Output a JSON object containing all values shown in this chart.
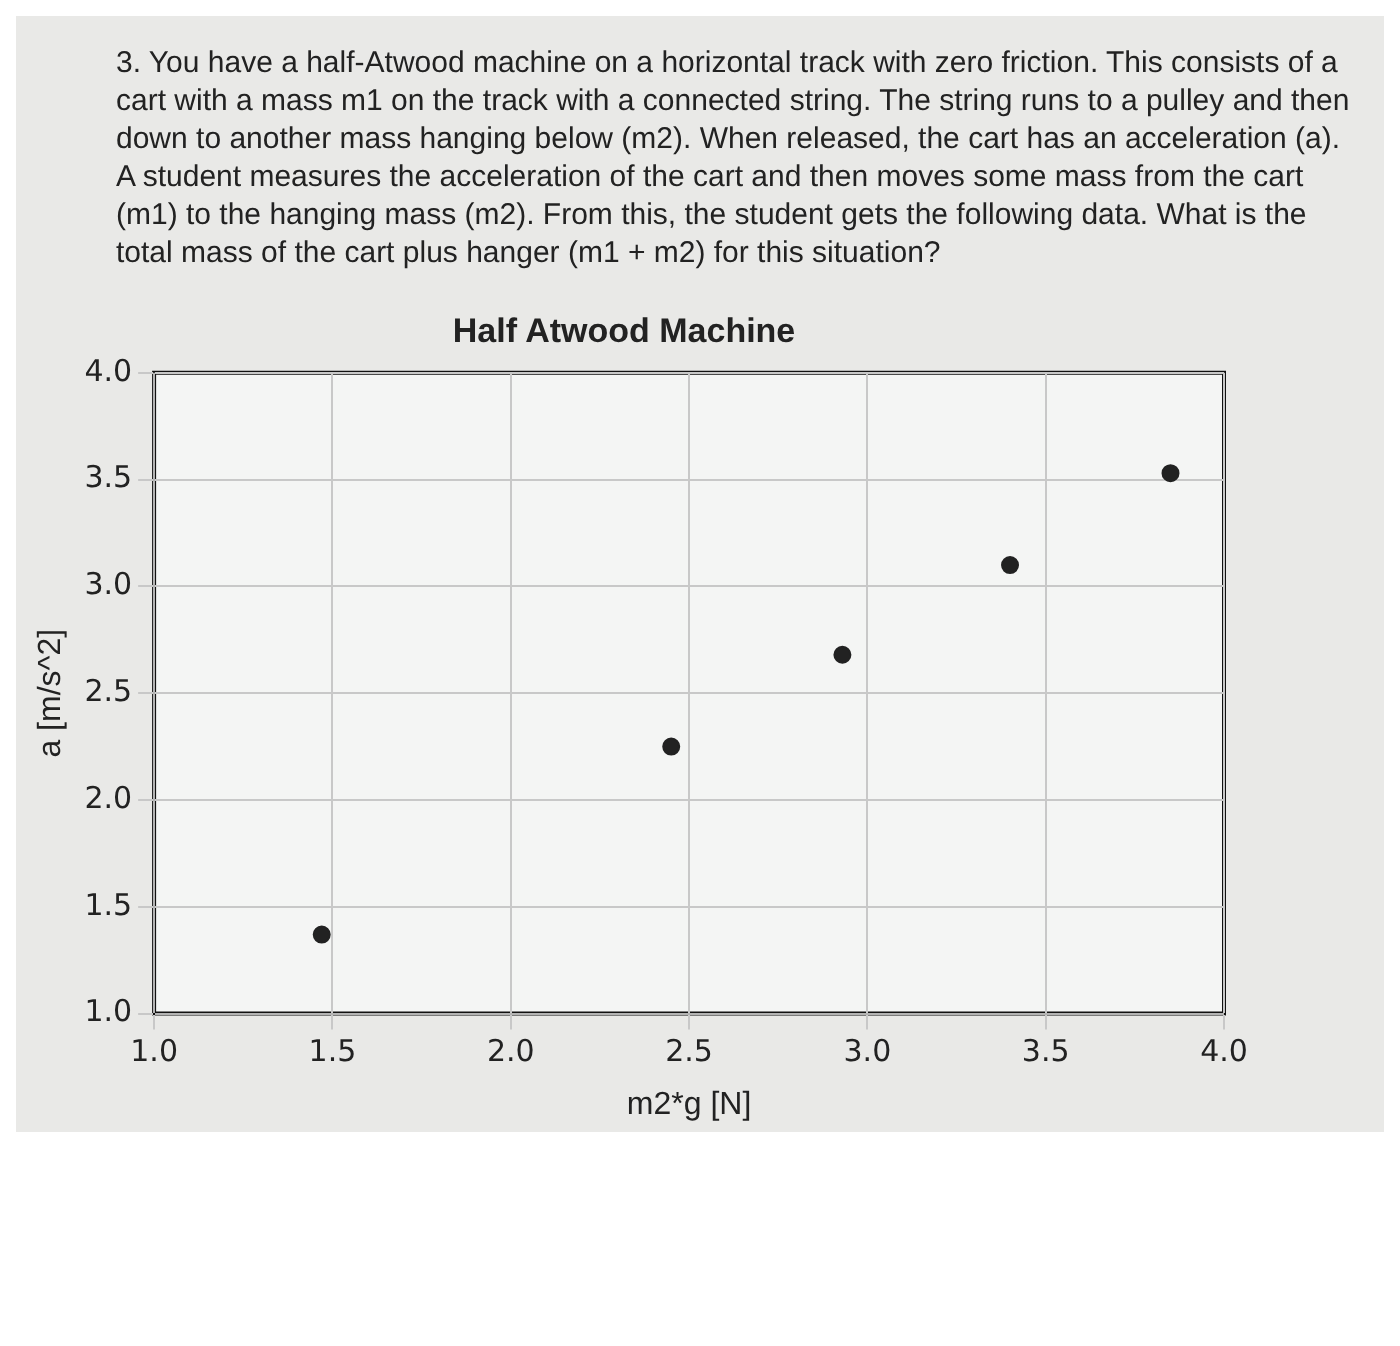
{
  "chart_data": {
    "type": "scatter",
    "title": "Half Atwood Machine",
    "xlabel": "m2*g [N]",
    "ylabel": "a [m/s^2]",
    "annotations": [
      "3. You have a half-Atwood machine on a horizontal track with zero friction. This consists of a cart with a mass m1 on the track with a connected string. The string runs to a pulley and then down to another mass hanging below (m2). When released, the cart has an acceleration (a). A student measures the acceleration of the cart and then moves some mass from the cart (m1) to the hanging mass (m2). From this, the student gets the following data. What is the total mass of the cart plus hanger (m1 + m2) for this situation?"
    ],
    "x": [
      1.47,
      2.45,
      2.93,
      3.4,
      3.85
    ],
    "values": [
      1.37,
      2.25,
      2.68,
      3.1,
      3.53
    ],
    "color": "#222222",
    "marker": "circle",
    "xlim": [
      1.0,
      4.0
    ],
    "xticks": [
      {
        "value": 1,
        "label": "1.0"
      },
      1.5,
      {
        "value": 2,
        "label": "2.0"
      },
      2.5,
      {
        "value": 3,
        "label": "3.0"
      },
      3.5,
      {
        "value": 4,
        "label": "4.0"
      }
    ],
    "ylim": [
      1.0,
      4.0
    ],
    "yticks": [
      {
        "value": 1,
        "label": "1.0"
      },
      1.5,
      {
        "value": 2,
        "label": "2.0"
      },
      2.5,
      {
        "value": 3,
        "label": "3.0"
      },
      3.5,
      {
        "value": 4,
        "label": "4.0"
      }
    ],
    "grid": true,
    "legend": false
  }
}
